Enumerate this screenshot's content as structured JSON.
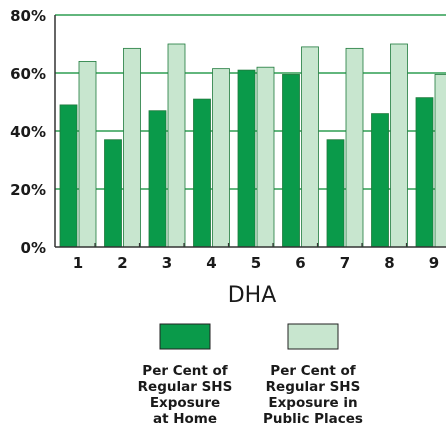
{
  "chart_data": {
    "type": "bar",
    "xlabel": "DHA",
    "ylabel": "",
    "categories": [
      "1",
      "2",
      "3",
      "4",
      "5",
      "6",
      "7",
      "8",
      "9"
    ],
    "ylim": [
      0,
      80
    ],
    "yticks": [
      "0%",
      "20%",
      "40%",
      "60%",
      "80%"
    ],
    "grid": true,
    "legend_position": "bottom",
    "series": [
      {
        "name": "Per Cent of Regular SHS Exposure at Home",
        "legend_lines": [
          "Per Cent of",
          "Regular SHS",
          "Exposure",
          "at Home"
        ],
        "color": "#0a9a4a",
        "values": [
          49,
          37,
          47,
          51,
          61,
          59.5,
          37,
          46,
          51.5
        ]
      },
      {
        "name": "Per Cent of Regular SHS Exposure in Public Places",
        "legend_lines": [
          "Per Cent of",
          "Regular SHS",
          "Exposure in",
          "Public Places"
        ],
        "color": "#c8e6cf",
        "values": [
          64,
          68.5,
          70,
          61.5,
          62,
          69,
          68.5,
          70,
          59.5
        ]
      }
    ]
  },
  "colors": {
    "grid": "#2e9e52",
    "axis": "#333333",
    "bar_stroke": "#1f7a3c"
  }
}
